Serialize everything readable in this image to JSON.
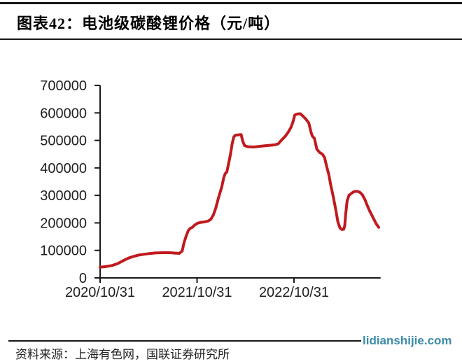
{
  "header": {
    "title": "图表42：电池级碳酸锂价格（元/吨）"
  },
  "footer": {
    "source": "资料来源：上海有色网，国联证券研究所",
    "watermark": "lidianshijie.com"
  },
  "colors": {
    "line": "#c01a1e",
    "axis": "#1a1a1a",
    "watermark": "#3a8ca6"
  },
  "chart_data": {
    "type": "line",
    "title": "电池级碳酸锂价格（元/吨）",
    "unit": "元/吨",
    "xlabel": "",
    "ylabel": "",
    "grid": false,
    "legend": "none",
    "line_color": "#c01a1e",
    "axis_color": "#1a1a1a",
    "ylim": [
      0,
      700000
    ],
    "y_ticks": [
      0,
      100000,
      200000,
      300000,
      400000,
      500000,
      600000,
      700000
    ],
    "x_ticks": [
      "2020/10/31",
      "2021/10/31",
      "2022/10/31"
    ],
    "x_range": [
      "2020/10/31",
      "2023/09/22"
    ],
    "series": [
      {
        "name": "电池级碳酸锂价格",
        "points": [
          [
            "2020/10/31",
            39000
          ],
          [
            "2020/11/20",
            41000
          ],
          [
            "2020/12/15",
            45000
          ],
          [
            "2021/01/05",
            52000
          ],
          [
            "2021/01/25",
            62000
          ],
          [
            "2021/02/15",
            72000
          ],
          [
            "2021/03/05",
            78000
          ],
          [
            "2021/03/25",
            83000
          ],
          [
            "2021/04/15",
            86000
          ],
          [
            "2021/05/05",
            88500
          ],
          [
            "2021/05/25",
            90500
          ],
          [
            "2021/06/15",
            91500
          ],
          [
            "2021/07/05",
            92000
          ],
          [
            "2021/07/25",
            91500
          ],
          [
            "2021/08/10",
            90000
          ],
          [
            "2021/08/25",
            89000
          ],
          [
            "2021/09/05",
            98000
          ],
          [
            "2021/09/12",
            128000
          ],
          [
            "2021/09/20",
            152000
          ],
          [
            "2021/09/28",
            172000
          ],
          [
            "2021/10/05",
            180000
          ],
          [
            "2021/10/12",
            183000
          ],
          [
            "2021/10/22",
            192000
          ],
          [
            "2021/11/02",
            199000
          ],
          [
            "2021/11/15",
            202000
          ],
          [
            "2021/11/30",
            204000
          ],
          [
            "2021/12/12",
            207000
          ],
          [
            "2021/12/22",
            213000
          ],
          [
            "2022/01/01",
            230000
          ],
          [
            "2022/01/10",
            255000
          ],
          [
            "2022/01/20",
            292000
          ],
          [
            "2022/02/01",
            331000
          ],
          [
            "2022/02/09",
            366000
          ],
          [
            "2022/02/14",
            379000
          ],
          [
            "2022/02/20",
            385000
          ],
          [
            "2022/02/27",
            417000
          ],
          [
            "2022/03/06",
            450000
          ],
          [
            "2022/03/12",
            487000
          ],
          [
            "2022/03/18",
            512000
          ],
          [
            "2022/03/24",
            519000
          ],
          [
            "2022/04/15",
            521000
          ],
          [
            "2022/04/21",
            497000
          ],
          [
            "2022/04/28",
            481000
          ],
          [
            "2022/05/10",
            477000
          ],
          [
            "2022/06/01",
            476000
          ],
          [
            "2022/06/20",
            478000
          ],
          [
            "2022/07/10",
            480000
          ],
          [
            "2022/08/01",
            482000
          ],
          [
            "2022/08/20",
            484000
          ],
          [
            "2022/09/02",
            488000
          ],
          [
            "2022/09/15",
            502000
          ],
          [
            "2022/09/28",
            515000
          ],
          [
            "2022/10/10",
            531000
          ],
          [
            "2022/10/20",
            548000
          ],
          [
            "2022/10/28",
            570000
          ],
          [
            "2022/11/03",
            592000
          ],
          [
            "2022/11/12",
            596000
          ],
          [
            "2022/11/24",
            597000
          ],
          [
            "2022/12/03",
            589000
          ],
          [
            "2022/12/15",
            577000
          ],
          [
            "2022/12/26",
            563000
          ],
          [
            "2023/01/03",
            530000
          ],
          [
            "2023/01/08",
            516000
          ],
          [
            "2023/01/16",
            507000
          ],
          [
            "2023/01/25",
            468000
          ],
          [
            "2023/02/05",
            456000
          ],
          [
            "2023/02/15",
            450000
          ],
          [
            "2023/02/23",
            438000
          ],
          [
            "2023/03/03",
            405000
          ],
          [
            "2023/03/11",
            376000
          ],
          [
            "2023/03/19",
            335000
          ],
          [
            "2023/03/28",
            294000
          ],
          [
            "2023/04/06",
            249000
          ],
          [
            "2023/04/14",
            205000
          ],
          [
            "2023/04/22",
            182000
          ],
          [
            "2023/04/29",
            176000
          ],
          [
            "2023/05/06",
            177000
          ],
          [
            "2023/05/10",
            190000
          ],
          [
            "2023/05/14",
            236000
          ],
          [
            "2023/05/19",
            280000
          ],
          [
            "2023/05/26",
            300000
          ],
          [
            "2023/06/05",
            308000
          ],
          [
            "2023/06/15",
            314000
          ],
          [
            "2023/06/25",
            315000
          ],
          [
            "2023/07/05",
            312000
          ],
          [
            "2023/07/15",
            303000
          ],
          [
            "2023/07/25",
            285000
          ],
          [
            "2023/08/03",
            263000
          ],
          [
            "2023/08/11",
            245000
          ],
          [
            "2023/08/20",
            228000
          ],
          [
            "2023/08/29",
            211000
          ],
          [
            "2023/09/06",
            196000
          ],
          [
            "2023/09/15",
            184000
          ]
        ]
      }
    ]
  }
}
